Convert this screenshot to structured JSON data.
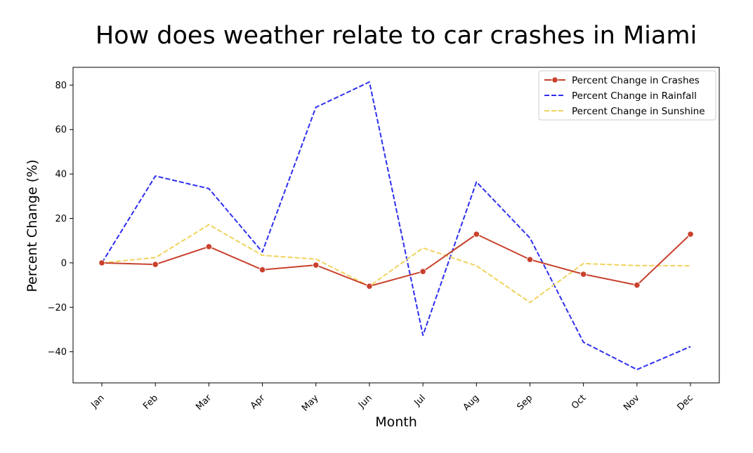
{
  "chart_data": {
    "type": "line",
    "title": "How does weather relate to car crashes in Miami",
    "xlabel": "Month",
    "ylabel": "Percent Change (%)",
    "categories": [
      "Jan",
      "Feb",
      "Mar",
      "Apr",
      "May",
      "Jun",
      "Jul",
      "Aug",
      "Sep",
      "Oct",
      "Nov",
      "Dec"
    ],
    "ylim": [
      -54,
      88
    ],
    "yticks": [
      -40,
      -20,
      0,
      20,
      40,
      60,
      80
    ],
    "grid": false,
    "legend_position": "top-right",
    "series": [
      {
        "name": "Percent Change in Crashes",
        "values": [
          0,
          -0.7,
          7.3,
          -3.1,
          -1.0,
          -10.5,
          -3.9,
          12.9,
          1.5,
          -5.1,
          -10.0,
          12.9
        ],
        "color": "#c8412c",
        "line_style": "solid",
        "marker": "circle"
      },
      {
        "name": "Percent Change in Rainfall",
        "values": [
          0,
          39.1,
          33.4,
          4.9,
          70.0,
          81.4,
          -32.6,
          36.4,
          11.2,
          -35.7,
          -48.0,
          -37.7
        ],
        "color": "#2e2ef0",
        "line_style": "dashed",
        "marker": "none"
      },
      {
        "name": "Percent Change in Sunshine",
        "values": [
          0,
          2.4,
          17.2,
          3.4,
          1.7,
          -10.5,
          6.7,
          -1.3,
          -17.8,
          -0.3,
          -1.2,
          -1.3
        ],
        "color": "#f0d35c",
        "line_style": "dashed",
        "marker": "none"
      }
    ]
  }
}
